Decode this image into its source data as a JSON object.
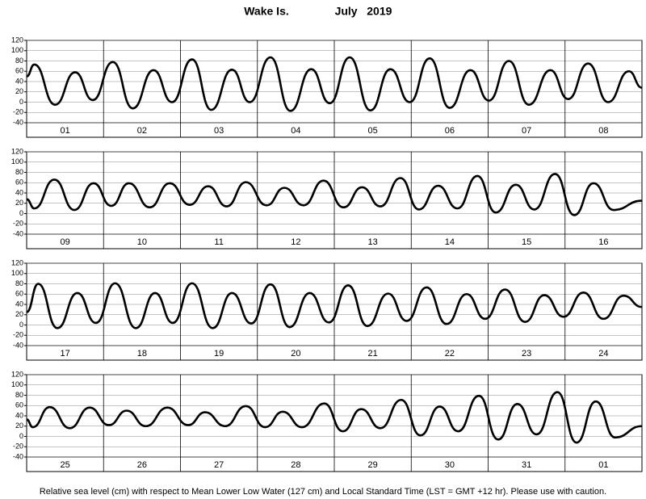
{
  "title": "Wake Is.",
  "subtitle": "July   2019",
  "footnote": "Relative sea level (cm) with respect to Mean Lower Low Water (127 cm) and Local Standard Time (LST = GMT +12 hr). Please use with caution.",
  "chart_data": [
    {
      "type": "line",
      "categories": [
        "01",
        "02",
        "03",
        "04",
        "05",
        "06",
        "07",
        "08"
      ],
      "xlim": [
        0,
        8
      ],
      "ylim": [
        -40,
        120
      ],
      "yticks": [
        -40,
        -20,
        0,
        20,
        40,
        60,
        80,
        100,
        120
      ],
      "x": [
        0,
        0.1,
        0.37,
        0.63,
        0.86,
        1.12,
        1.38,
        1.65,
        1.89,
        2.15,
        2.4,
        2.67,
        2.9,
        3.17,
        3.43,
        3.7,
        3.94,
        4.2,
        4.47,
        4.73,
        4.98,
        5.24,
        5.5,
        5.77,
        6.01,
        6.27,
        6.53,
        6.81,
        7.04,
        7.3,
        7.56,
        7.83,
        8
      ],
      "series": [
        {
          "color": "#000000",
          "values": [
            50,
            73,
            -5,
            58,
            4,
            78,
            -12,
            62,
            0,
            83,
            -15,
            63,
            0,
            87,
            -17,
            64,
            -2,
            87,
            -16,
            64,
            0,
            85,
            -11,
            62,
            3,
            80,
            -5,
            62,
            6,
            75,
            0,
            60,
            28
          ]
        }
      ]
    },
    {
      "type": "line",
      "categories": [
        "09",
        "10",
        "11",
        "12",
        "13",
        "14",
        "15",
        "16"
      ],
      "xlim": [
        0,
        8
      ],
      "ylim": [
        -40,
        120
      ],
      "yticks": [
        -40,
        -20,
        0,
        20,
        40,
        60,
        80,
        100,
        120
      ],
      "x": [
        0,
        0.1,
        0.36,
        0.62,
        0.87,
        1.1,
        1.33,
        1.6,
        1.86,
        2.12,
        2.36,
        2.6,
        2.85,
        3.12,
        3.35,
        3.6,
        3.86,
        4.12,
        4.36,
        4.6,
        4.86,
        5.1,
        5.35,
        5.6,
        5.86,
        6.1,
        6.36,
        6.6,
        6.87,
        7.12,
        7.37,
        7.63,
        8
      ],
      "series": [
        {
          "color": "#000000",
          "values": [
            28,
            10,
            66,
            7,
            59,
            15,
            59,
            12,
            59,
            17,
            53,
            14,
            61,
            16,
            50,
            16,
            64,
            12,
            51,
            14,
            69,
            8,
            54,
            10,
            73,
            2,
            56,
            8,
            77,
            -3,
            59,
            7,
            25
          ]
        }
      ]
    },
    {
      "type": "line",
      "categories": [
        "17",
        "18",
        "19",
        "20",
        "21",
        "22",
        "23",
        "24"
      ],
      "xlim": [
        0,
        8
      ],
      "ylim": [
        -40,
        120
      ],
      "yticks": [
        -40,
        -20,
        0,
        20,
        40,
        60,
        80,
        100,
        120
      ],
      "x": [
        0,
        0.15,
        0.4,
        0.66,
        0.9,
        1.15,
        1.42,
        1.67,
        1.9,
        2.15,
        2.42,
        2.67,
        2.92,
        3.17,
        3.42,
        3.68,
        3.93,
        4.18,
        4.43,
        4.7,
        4.94,
        5.2,
        5.46,
        5.72,
        5.96,
        6.22,
        6.48,
        6.73,
        6.98,
        7.24,
        7.5,
        7.76,
        8
      ],
      "series": [
        {
          "color": "#000000",
          "values": [
            25,
            80,
            -6,
            62,
            4,
            81,
            -6,
            62,
            4,
            81,
            -6,
            62,
            3,
            79,
            -4,
            62,
            5,
            77,
            -2,
            61,
            8,
            73,
            2,
            60,
            12,
            69,
            6,
            58,
            16,
            63,
            12,
            57,
            35
          ]
        }
      ]
    },
    {
      "type": "line",
      "categories": [
        "25",
        "26",
        "27",
        "28",
        "29",
        "30",
        "31",
        "01"
      ],
      "xlim": [
        0,
        8
      ],
      "ylim": [
        -40,
        120
      ],
      "yticks": [
        -40,
        -20,
        0,
        20,
        40,
        60,
        80,
        100,
        120
      ],
      "x": [
        0,
        0.08,
        0.3,
        0.56,
        0.82,
        1.07,
        1.3,
        1.55,
        1.83,
        2.1,
        2.32,
        2.58,
        2.85,
        3.1,
        3.33,
        3.58,
        3.87,
        4.11,
        4.35,
        4.6,
        4.87,
        5.12,
        5.37,
        5.61,
        5.88,
        6.13,
        6.38,
        6.63,
        6.9,
        7.15,
        7.4,
        7.65,
        8
      ],
      "series": [
        {
          "color": "#000000",
          "values": [
            33,
            18,
            57,
            16,
            56,
            22,
            50,
            20,
            56,
            22,
            47,
            20,
            59,
            18,
            48,
            18,
            64,
            10,
            53,
            16,
            71,
            2,
            58,
            10,
            79,
            -6,
            63,
            4,
            86,
            -12,
            68,
            -2,
            20
          ]
        }
      ]
    }
  ]
}
